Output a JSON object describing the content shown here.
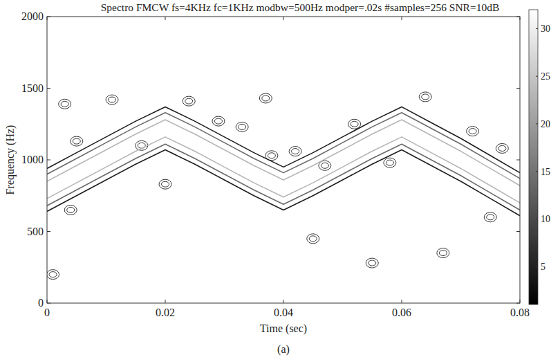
{
  "chart_data": {
    "type": "contour",
    "title": "Spectro FMCW fs=4KHz fc=1KHz modbw=500Hz modper=.02s #samples=256 SNR=10dB",
    "x_label": "Time (sec)",
    "y_label": "Frequency (Hz)",
    "caption": "(a)",
    "x": [
      0,
      0.005,
      0.01,
      0.015,
      0.02,
      0.025,
      0.03,
      0.035,
      0.04,
      0.045,
      0.05,
      0.055,
      0.06,
      0.065,
      0.07,
      0.075,
      0.08
    ],
    "xlim": [
      0,
      0.08
    ],
    "xticks": [
      0,
      0.02,
      0.04,
      0.06,
      0.08
    ],
    "ylim": [
      0,
      2000
    ],
    "yticks": [
      0,
      500,
      1000,
      1500,
      2000
    ],
    "contours": [
      {
        "level": 5,
        "upper": [
          940,
          1050,
          1160,
          1270,
          1370,
          1270,
          1160,
          1050,
          950,
          1050,
          1160,
          1270,
          1370,
          1260,
          1150,
          1030,
          910
        ],
        "lower": [
          640,
          750,
          860,
          970,
          1070,
          970,
          860,
          750,
          650,
          750,
          860,
          970,
          1070,
          960,
          850,
          730,
          610
        ]
      },
      {
        "level": 15,
        "upper": [
          900,
          1010,
          1120,
          1230,
          1330,
          1230,
          1120,
          1010,
          910,
          1010,
          1120,
          1230,
          1330,
          1220,
          1110,
          990,
          870
        ],
        "lower": [
          680,
          790,
          900,
          1010,
          1110,
          1010,
          900,
          790,
          690,
          790,
          900,
          1010,
          1110,
          1000,
          890,
          770,
          650
        ]
      },
      {
        "level": 25,
        "upper": [
          850,
          960,
          1070,
          1180,
          1280,
          1180,
          1070,
          960,
          860,
          960,
          1070,
          1180,
          1280,
          1170,
          1060,
          940,
          820
        ],
        "lower": [
          730,
          840,
          950,
          1060,
          1160,
          1060,
          950,
          840,
          740,
          840,
          950,
          1060,
          1160,
          1050,
          940,
          820,
          700
        ]
      }
    ],
    "blobs": [
      {
        "x": 0.003,
        "y": 1390,
        "level": 5
      },
      {
        "x": 0.005,
        "y": 1130,
        "level": 5
      },
      {
        "x": 0.004,
        "y": 650,
        "level": 5
      },
      {
        "x": 0.001,
        "y": 200,
        "level": 5
      },
      {
        "x": 0.011,
        "y": 1420,
        "level": 5
      },
      {
        "x": 0.016,
        "y": 1100,
        "level": 5
      },
      {
        "x": 0.02,
        "y": 830,
        "level": 5
      },
      {
        "x": 0.024,
        "y": 1410,
        "level": 5
      },
      {
        "x": 0.029,
        "y": 1270,
        "level": 5
      },
      {
        "x": 0.033,
        "y": 1230,
        "level": 5
      },
      {
        "x": 0.038,
        "y": 1030,
        "level": 5
      },
      {
        "x": 0.042,
        "y": 1060,
        "level": 5
      },
      {
        "x": 0.047,
        "y": 960,
        "level": 5
      },
      {
        "x": 0.045,
        "y": 450,
        "level": 5
      },
      {
        "x": 0.052,
        "y": 1250,
        "level": 5
      },
      {
        "x": 0.055,
        "y": 280,
        "level": 5
      },
      {
        "x": 0.058,
        "y": 980,
        "level": 5
      },
      {
        "x": 0.064,
        "y": 1440,
        "level": 5
      },
      {
        "x": 0.067,
        "y": 350,
        "level": 5
      },
      {
        "x": 0.072,
        "y": 1200,
        "level": 5
      },
      {
        "x": 0.077,
        "y": 1080,
        "level": 5
      },
      {
        "x": 0.075,
        "y": 600,
        "level": 5
      },
      {
        "x": 0.037,
        "y": 1430,
        "level": 5
      }
    ],
    "colorbar_lim": [
      1,
      32
    ],
    "colorbar_ticks": [
      5,
      10,
      15,
      20,
      25,
      30
    ]
  }
}
